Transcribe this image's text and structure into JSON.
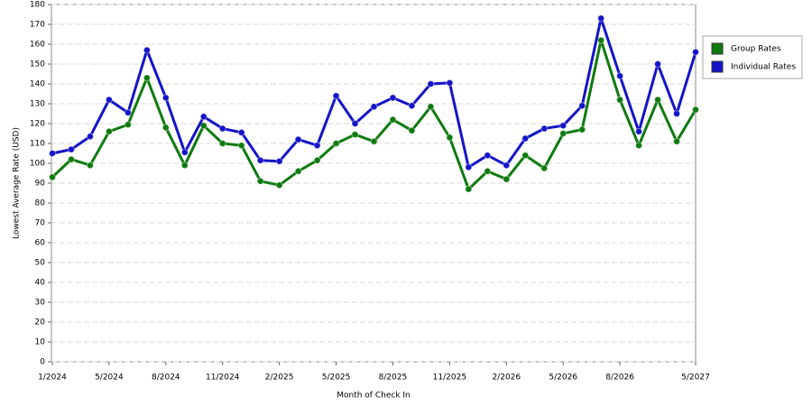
{
  "chart_data": {
    "type": "line",
    "x_label": "Month of Check In",
    "y_label": "Lowest Average Rate (USD)",
    "categories": [
      "1/2024",
      null,
      null,
      "5/2024",
      null,
      null,
      "8/2024",
      null,
      null,
      "11/2024",
      null,
      null,
      "2/2025",
      null,
      null,
      "5/2025",
      null,
      null,
      "8/2025",
      null,
      null,
      "11/2025",
      null,
      null,
      "2/2026",
      null,
      null,
      "5/2026",
      null,
      null,
      "8/2026",
      null,
      null,
      null,
      "5/2027"
    ],
    "series": [
      {
        "name": "Group Rates",
        "color": "#0f7a0f",
        "values": [
          93,
          102,
          99,
          116,
          119.5,
          143,
          118,
          99,
          119,
          110,
          109,
          91,
          89,
          96,
          101.5,
          110,
          114.5,
          111,
          122,
          116.5,
          128.5,
          113,
          87,
          96,
          92,
          104,
          97.5,
          115,
          117,
          162,
          132,
          109,
          132,
          111,
          127
        ]
      },
      {
        "name": "Individual Rates",
        "color": "#1414c8",
        "values": [
          105,
          107,
          113.5,
          132,
          125.5,
          157,
          133,
          105.5,
          123.5,
          117.5,
          115.5,
          101.5,
          101,
          112,
          109,
          134,
          120,
          128.5,
          133,
          129,
          140,
          140.5,
          98,
          104,
          99,
          112.5,
          117.5,
          119,
          129,
          173,
          144,
          116,
          150,
          125,
          156
        ]
      }
    ],
    "ylim": [
      0,
      180
    ],
    "yticks": [
      0,
      10,
      20,
      30,
      40,
      50,
      60,
      70,
      80,
      90,
      100,
      110,
      120,
      130,
      140,
      150,
      160,
      170,
      180
    ],
    "grid": true,
    "legend": "right"
  }
}
